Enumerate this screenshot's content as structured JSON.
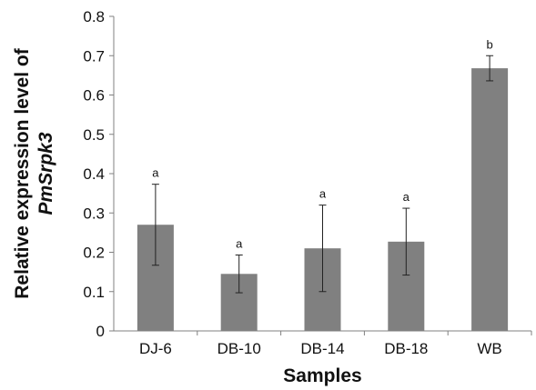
{
  "chart_data": {
    "type": "bar",
    "categories": [
      "DJ-6",
      "DB-10",
      "DB-14",
      "DB-18",
      "WB"
    ],
    "values": [
      0.27,
      0.145,
      0.21,
      0.227,
      0.668
    ],
    "error": [
      0.103,
      0.048,
      0.11,
      0.085,
      0.032
    ],
    "significance_labels": [
      "a",
      "a",
      "a",
      "a",
      "b"
    ],
    "ylim": [
      0,
      0.8
    ],
    "yticks": [
      "0",
      "0.1",
      "0.2",
      "0.3",
      "0.4",
      "0.5",
      "0.6",
      "0.7",
      "0.8"
    ],
    "xlabel": "Samples",
    "ylabel_line1": "Relative expression level of",
    "ylabel_line2": "PmSrpk3",
    "bar_color": "#808080",
    "grid": false
  }
}
